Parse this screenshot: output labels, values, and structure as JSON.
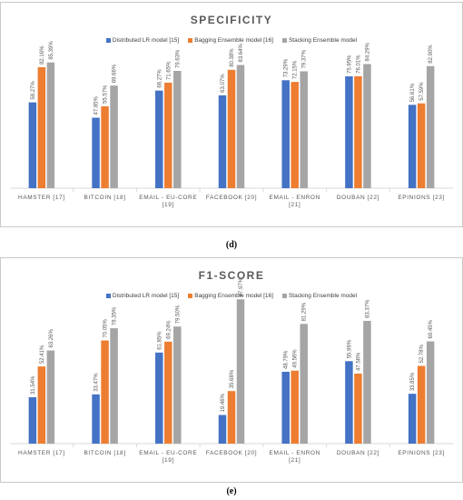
{
  "colors": {
    "series": [
      "#4472C4",
      "#ED7D31",
      "#A5A5A5"
    ],
    "axis": "#d9d9d9",
    "text": "#595959"
  },
  "captions": {
    "d": "(d)",
    "e": "(e)"
  },
  "chart_data": [
    {
      "type": "bar",
      "title": "SPECIFICITY",
      "xlabel": "",
      "ylabel": "",
      "ylim": [
        0,
        100
      ],
      "grid": false,
      "legend": "top-center",
      "categories": [
        "HAMSTER [17]",
        "BITCOIN [18]",
        "EMAIL - EU-CORE [19]",
        "FACEBOOK [20]",
        "EMAIL - ENRON [21]",
        "DOUBAN [22]",
        "EPINIONS [23]"
      ],
      "category_lines": [
        [
          "HAMSTER [17]"
        ],
        [
          "BITCOIN [18]"
        ],
        [
          "EMAIL - EU-CORE",
          "[19]"
        ],
        [
          "FACEBOOK [20]"
        ],
        [
          "EMAIL - ENRON",
          "[21]"
        ],
        [
          "DOUBAN [22]"
        ],
        [
          "EPINIONS [23]"
        ]
      ],
      "series": [
        {
          "name": "Distributed LR model [15]",
          "values": [
            58.27,
            47.85,
            66.27,
            63.07,
            73.29,
            75.95,
            56.61
          ],
          "labels": [
            "58.27%",
            "47.85%",
            "66.27%",
            "63.07%",
            "73.29%",
            "75.95%",
            "56.61%"
          ]
        },
        {
          "name": "Bagging Ensemble model [16]",
          "values": [
            82.16,
            55.57,
            71.65,
            80.38,
            72.15,
            76.01,
            57.59
          ],
          "labels": [
            "82.16%",
            "55.57%",
            "71.65%",
            "80.38%",
            "72.15%",
            "76.01%",
            "57.59%"
          ]
        },
        {
          "name": "Stacking Ensemble model",
          "values": [
            85.39,
            69.66,
            79.63,
            83.64,
            79.37,
            84.29,
            82.9
          ],
          "labels": [
            "85.39%",
            "69.66%",
            "79.63%",
            "83.64%",
            "79.37%",
            "84.29%",
            "82.90%"
          ]
        }
      ]
    },
    {
      "type": "bar",
      "title": "F1-SCORE",
      "xlabel": "",
      "ylabel": "",
      "ylim": [
        0,
        100
      ],
      "grid": false,
      "legend": "top-center",
      "categories": [
        "HAMSTER [17]",
        "BITCOIN [18]",
        "EMAIL - EU-CORE [19]",
        "FACEBOOK [20]",
        "EMAIL - ENRON [21]",
        "DOUBAN [22]",
        "EPINIONS [23]"
      ],
      "category_lines": [
        [
          "HAMSTER [17]"
        ],
        [
          "BITCOIN [18]"
        ],
        [
          "EMAIL - EU-CORE",
          "[19]"
        ],
        [
          "FACEBOOK [20]"
        ],
        [
          "EMAIL - ENRON",
          "[21]"
        ],
        [
          "DOUBAN [22]"
        ],
        [
          "EPINIONS [23]"
        ]
      ],
      "series": [
        {
          "name": "Distributed LR model [15]",
          "values": [
            31.54,
            33.47,
            61.85,
            19.46,
            48.79,
            55.99,
            33.85
          ],
          "labels": [
            "31.54%",
            "33.47%",
            "61.85%",
            "19.46%",
            "48.79%",
            "55.99%",
            "33.85%"
          ]
        },
        {
          "name": "Bagging Ensemble model [16]",
          "values": [
            52.41,
            70.05,
            69.24,
            35.68,
            49.56,
            47.56,
            52.78
          ],
          "labels": [
            "52.41%",
            "70.05%",
            "69.24%",
            "35.68%",
            "49.56%",
            "47.56%",
            "52.78%"
          ]
        },
        {
          "name": "Stacking Ensemble model",
          "values": [
            63.26,
            78.35,
            79.5,
            97.97,
            81.29,
            83.37,
            69.45
          ],
          "labels": [
            "63.26%",
            "78.35%",
            "79.50%",
            "97.97%",
            "81.29%",
            "83.37%",
            "69.45%"
          ]
        }
      ]
    }
  ]
}
